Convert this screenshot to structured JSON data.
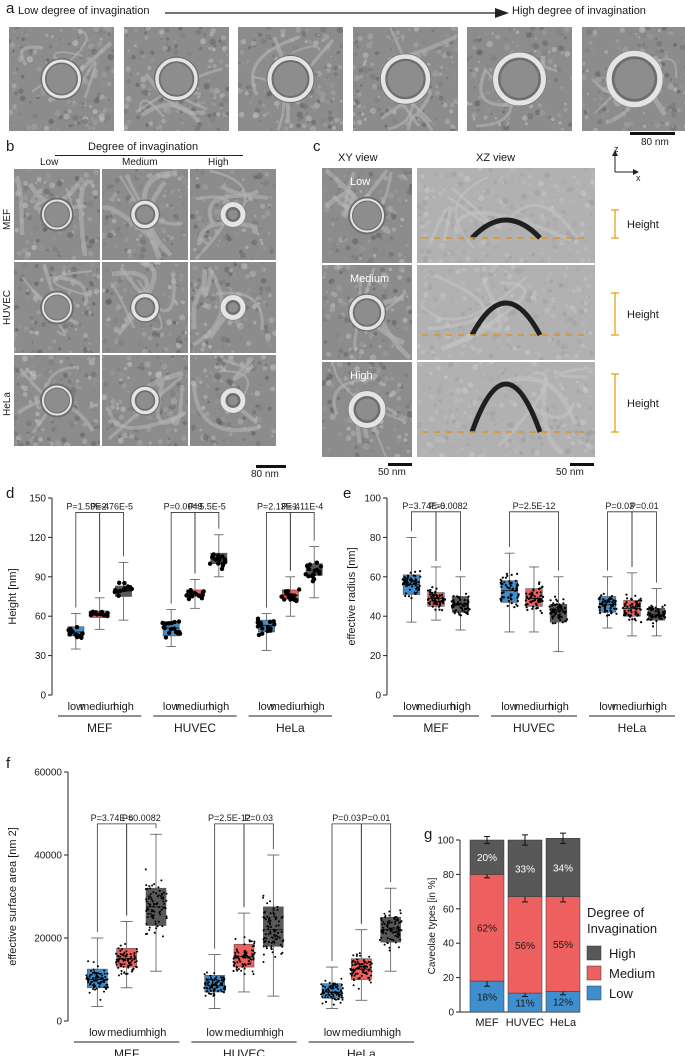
{
  "panel_a": {
    "letter": "a",
    "arrow_left": "Low degree of invagination",
    "arrow_right": "High degree of invagination",
    "scale_bar": "80 nm"
  },
  "panel_b": {
    "letter": "b",
    "header": "Degree of invagination",
    "cols": [
      "Low",
      "Medium",
      "High"
    ],
    "rows": [
      "MEF",
      "HUVEC",
      "HeLa"
    ],
    "scale_bar": "80 nm"
  },
  "panel_c": {
    "letter": "c",
    "xy_view": "XY view",
    "xz_view": "XZ view",
    "axis_z": "z",
    "axis_x": "x",
    "rows": [
      "Low",
      "Medium",
      "High"
    ],
    "height_label": "Height",
    "scale_left": "50 nm",
    "scale_right": "50 nm"
  },
  "panel_d": {
    "letter": "d"
  },
  "panel_e": {
    "letter": "e"
  },
  "panel_f": {
    "letter": "f"
  },
  "panel_g": {
    "letter": "g"
  },
  "colors": {
    "low": "#3f8fce",
    "medium": "#ee5f5f",
    "high": "#585858"
  },
  "chart_data": [
    {
      "id": "d",
      "type": "box",
      "ylabel": "Height [nm]",
      "ylim": [
        0,
        150
      ],
      "yticks": [
        0,
        30,
        60,
        90,
        120,
        150
      ],
      "groups": [
        "MEF",
        "HUVEC",
        "HeLa"
      ],
      "categories": [
        "low",
        "medium",
        "high"
      ],
      "boxes": [
        {
          "median": 48,
          "q1": 45,
          "q3": 52,
          "min": 35,
          "max": 62
        },
        {
          "median": 62,
          "q1": 59,
          "q3": 64,
          "min": 50,
          "max": 74
        },
        {
          "median": 79,
          "q1": 75,
          "q3": 83,
          "min": 57,
          "max": 101
        },
        {
          "median": 51,
          "q1": 45,
          "q3": 56,
          "min": 37,
          "max": 65
        },
        {
          "median": 77,
          "q1": 75,
          "q3": 80,
          "min": 66,
          "max": 88
        },
        {
          "median": 104,
          "q1": 100,
          "q3": 108,
          "min": 90,
          "max": 122
        },
        {
          "median": 53,
          "q1": 48,
          "q3": 57,
          "min": 34,
          "max": 62
        },
        {
          "median": 76,
          "q1": 73,
          "q3": 80,
          "min": 60,
          "max": 90
        },
        {
          "median": 95,
          "q1": 91,
          "q3": 100,
          "min": 74,
          "max": 113
        }
      ],
      "comparisons": [
        {
          "from": 0,
          "to": 1,
          "label": "P=1.59E-4",
          "y": 139
        },
        {
          "from": 1,
          "to": 2,
          "label": "P=2.76E-5",
          "y": 139
        },
        {
          "from": 3,
          "to": 4,
          "label": "P=0.0049",
          "y": 139
        },
        {
          "from": 4,
          "to": 5,
          "label": "P=5.5E-5",
          "y": 139
        },
        {
          "from": 6,
          "to": 7,
          "label": "P=2.13E-4",
          "y": 139
        },
        {
          "from": 7,
          "to": 8,
          "label": "P=1.11E-4",
          "y": 139
        }
      ]
    },
    {
      "id": "e",
      "type": "box",
      "ylabel": "effective radius [nm]",
      "ylim": [
        0,
        100
      ],
      "yticks": [
        0,
        20,
        40,
        60,
        80,
        100
      ],
      "groups": [
        "MEF",
        "HUVEC",
        "HeLa"
      ],
      "categories": [
        "low",
        "medium",
        "high"
      ],
      "boxes": [
        {
          "median": 56,
          "q1": 51,
          "q3": 61,
          "min": 37,
          "max": 80
        },
        {
          "median": 49,
          "q1": 45,
          "q3": 52,
          "min": 38,
          "max": 65
        },
        {
          "median": 46,
          "q1": 42,
          "q3": 50,
          "min": 33,
          "max": 60
        },
        {
          "median": 53,
          "q1": 47,
          "q3": 58,
          "min": 32,
          "max": 72
        },
        {
          "median": 49,
          "q1": 45,
          "q3": 54,
          "min": 32,
          "max": 65
        },
        {
          "median": 42,
          "q1": 37,
          "q3": 46,
          "min": 22,
          "max": 60
        },
        {
          "median": 46,
          "q1": 42,
          "q3": 50,
          "min": 34,
          "max": 60
        },
        {
          "median": 44,
          "q1": 40,
          "q3": 48,
          "min": 30,
          "max": 62
        },
        {
          "median": 41,
          "q1": 38,
          "q3": 44,
          "min": 30,
          "max": 54
        }
      ],
      "comparisons": [
        {
          "from": 0,
          "to": 1,
          "label": "P=3.74E-6",
          "y": 93
        },
        {
          "from": 1,
          "to": 2,
          "label": "P=0.0082",
          "y": 93
        },
        {
          "from": 3,
          "to": 5,
          "label": "P=2.5E-12",
          "y": 93
        },
        {
          "from": 6,
          "to": 7,
          "label": "P=0.03",
          "y": 93
        },
        {
          "from": 7,
          "to": 8,
          "label": "P=0.01",
          "y": 93
        }
      ]
    },
    {
      "id": "f",
      "type": "box",
      "ylabel": "effective surface area [nm 2]",
      "ylim": [
        0,
        60000
      ],
      "yticks": [
        0,
        20000,
        40000,
        60000
      ],
      "groups": [
        "MEF",
        "HUVEC",
        "HeLa"
      ],
      "categories": [
        "low",
        "medium",
        "high"
      ],
      "boxes": [
        {
          "median": 10000,
          "q1": 8000,
          "q3": 12500,
          "min": 3500,
          "max": 20000
        },
        {
          "median": 15000,
          "q1": 13000,
          "q3": 17500,
          "min": 8000,
          "max": 24000
        },
        {
          "median": 27500,
          "q1": 23000,
          "q3": 32000,
          "min": 12000,
          "max": 45000
        },
        {
          "median": 8500,
          "q1": 7000,
          "q3": 11000,
          "min": 3000,
          "max": 16000
        },
        {
          "median": 15500,
          "q1": 13000,
          "q3": 18500,
          "min": 7000,
          "max": 26000
        },
        {
          "median": 22000,
          "q1": 18000,
          "q3": 27500,
          "min": 6000,
          "max": 40000
        },
        {
          "median": 7000,
          "q1": 5500,
          "q3": 9000,
          "min": 3000,
          "max": 13000
        },
        {
          "median": 12500,
          "q1": 10000,
          "q3": 15000,
          "min": 5000,
          "max": 22000
        },
        {
          "median": 22000,
          "q1": 19000,
          "q3": 25000,
          "min": 12000,
          "max": 32000
        }
      ],
      "comparisons": [
        {
          "from": 0,
          "to": 1,
          "label": "P=3.74E-6",
          "y": 47500
        },
        {
          "from": 1,
          "to": 2,
          "label": "P=0.0082",
          "y": 47500
        },
        {
          "from": 3,
          "to": 4,
          "label": "P=2.5E-12",
          "y": 47500
        },
        {
          "from": 4,
          "to": 5,
          "label": "P=0.03",
          "y": 47500
        },
        {
          "from": 6,
          "to": 7,
          "label": "P=0.03",
          "y": 47500
        },
        {
          "from": 7,
          "to": 8,
          "label": "P=0.01",
          "y": 47500
        }
      ]
    },
    {
      "id": "g",
      "type": "stacked-bar",
      "ylabel": "Caveolae types [in %]",
      "ylim": [
        0,
        100
      ],
      "yticks": [
        0,
        20,
        40,
        60,
        80,
        100
      ],
      "categories": [
        "MEF",
        "HUVEC",
        "HeLa"
      ],
      "legend_title": "Degree of Invagination",
      "series": [
        {
          "name": "Low",
          "values": [
            18,
            11,
            12
          ],
          "labels": [
            "18%",
            "11%",
            "12%"
          ],
          "err": [
            3,
            2,
            2
          ]
        },
        {
          "name": "Medium",
          "values": [
            62,
            56,
            55
          ],
          "labels": [
            "62%",
            "56%",
            "55%"
          ],
          "err": [
            2,
            3,
            3
          ]
        },
        {
          "name": "High",
          "values": [
            20,
            33,
            34
          ],
          "labels": [
            "20%",
            "33%",
            "34%"
          ],
          "err": [
            2,
            3,
            3
          ]
        }
      ],
      "legend_order": [
        "High",
        "Medium",
        "Low"
      ]
    }
  ]
}
